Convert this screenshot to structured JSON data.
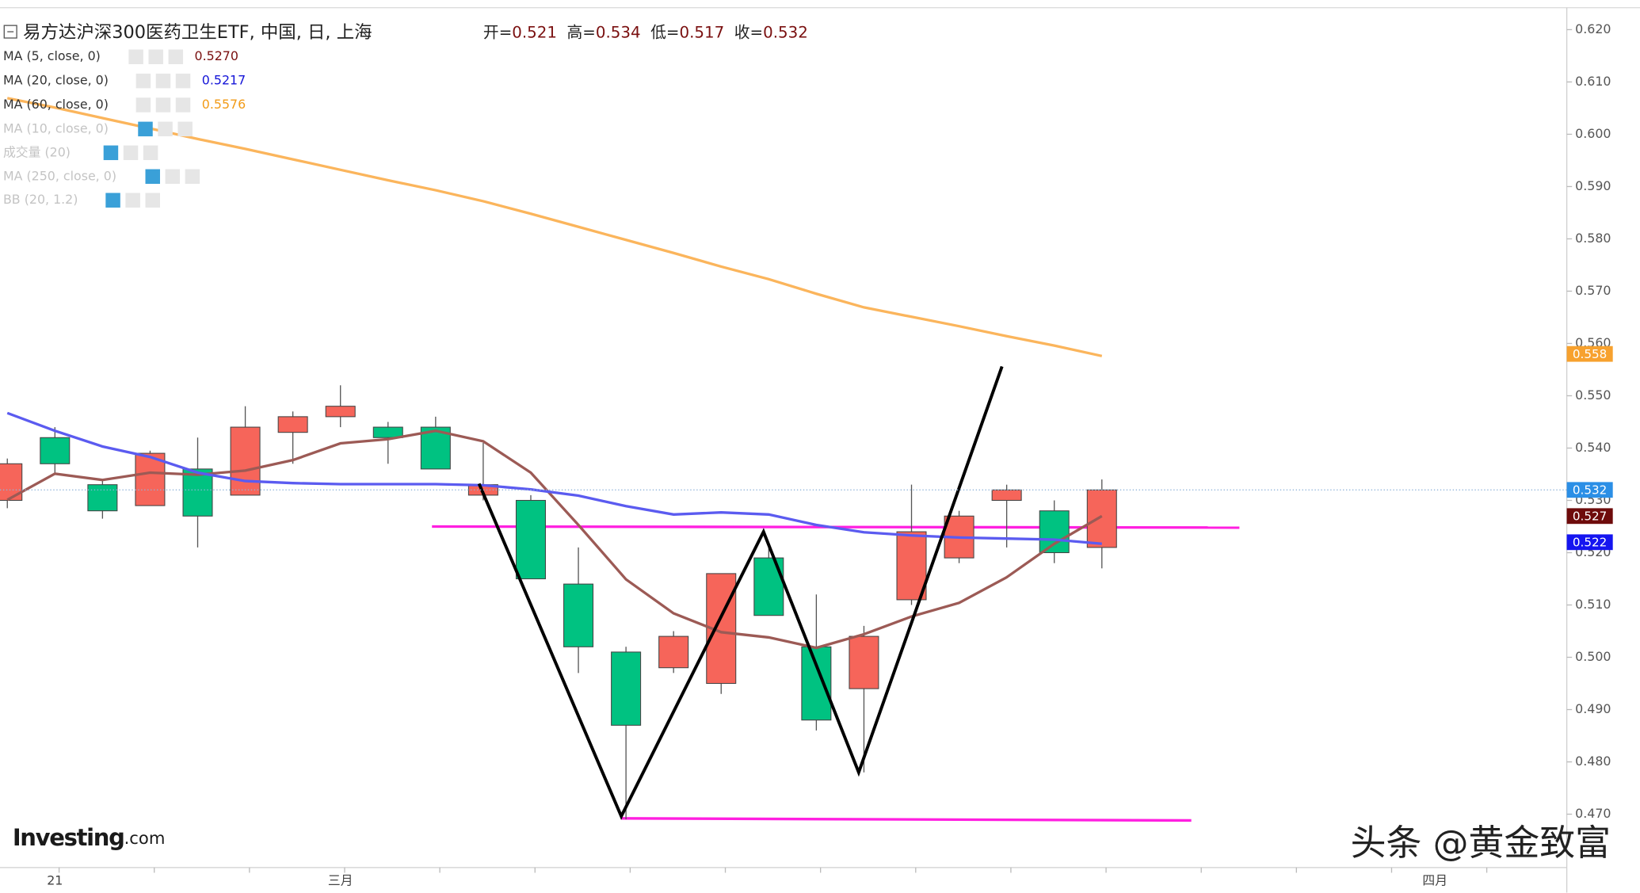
{
  "chart_data": {
    "type": "candlestick",
    "title": "易方达沪深300医药卫生ETF, 中国, 日, 上海",
    "ohlc": [
      {
        "label": "开=",
        "value": 0.521
      },
      {
        "label": "高=",
        "value": 0.534
      },
      {
        "label": "低=",
        "value": 0.517
      },
      {
        "label": "收=",
        "value": 0.532
      }
    ],
    "categories": [
      null,
      "21",
      null,
      null,
      null,
      null,
      null,
      "三月",
      null,
      null,
      null,
      null,
      null,
      null,
      null,
      null,
      null,
      null,
      null,
      null,
      null,
      null,
      null,
      null,
      null,
      null,
      null,
      null,
      null,
      null,
      "四月",
      null,
      null
    ],
    "candles": {
      "up_color": "#f6655a",
      "down_color": "#00c281",
      "open": [
        0.53,
        0.542,
        0.533,
        0.529,
        0.536,
        0.531,
        0.543,
        0.546,
        0.544,
        0.544,
        0.531,
        0.53,
        0.514,
        0.501,
        0.498,
        0.495,
        0.519,
        0.502,
        0.494,
        0.511,
        0.519,
        0.53,
        0.528,
        0.521,
        null,
        null,
        null,
        null,
        null,
        null,
        null,
        null,
        null
      ],
      "high": [
        0.538,
        0.544,
        0.534,
        0.5395,
        0.542,
        0.548,
        0.547,
        0.552,
        0.545,
        0.546,
        0.541,
        0.531,
        0.521,
        0.502,
        0.505,
        0.516,
        0.521,
        0.512,
        0.506,
        0.533,
        0.528,
        0.533,
        0.53,
        0.534,
        null,
        null,
        null,
        null,
        null,
        null,
        null,
        null,
        null
      ],
      "low": [
        0.5285,
        0.535,
        0.5265,
        0.529,
        0.521,
        0.531,
        0.537,
        0.544,
        0.537,
        0.536,
        0.53,
        0.515,
        0.497,
        0.469,
        0.497,
        0.493,
        0.508,
        0.486,
        0.478,
        0.51,
        0.518,
        0.521,
        0.518,
        0.517,
        null,
        null,
        null,
        null,
        null,
        null,
        null,
        null,
        null
      ],
      "close": [
        0.537,
        0.537,
        0.528,
        0.539,
        0.527,
        0.544,
        0.546,
        0.548,
        0.542,
        0.536,
        0.533,
        0.515,
        0.502,
        0.487,
        0.504,
        0.516,
        0.508,
        0.488,
        0.504,
        0.524,
        0.527,
        0.532,
        0.52,
        0.532,
        null,
        null,
        null,
        null,
        null,
        null,
        null,
        null,
        null
      ]
    },
    "series": [
      {
        "name": "MA (5, close, 0)",
        "color": "#9c5a55",
        "value_label": "0.5270",
        "values": [
          0.5301,
          0.5351,
          0.5339,
          0.5353,
          0.5349,
          0.5357,
          0.5377,
          0.5409,
          0.5417,
          0.5433,
          0.5413,
          0.5353,
          0.5253,
          0.5149,
          0.5084,
          0.5048,
          0.5038,
          0.5018,
          0.5044,
          0.5078,
          0.5104,
          0.5153,
          0.5217,
          0.527,
          null,
          null,
          null,
          null,
          null,
          null,
          null,
          null,
          null
        ]
      },
      {
        "name": "MA (20, close, 0)",
        "color": "#5b5bf0",
        "value_label": "0.5217",
        "values": [
          0.5467,
          0.5433,
          0.5403,
          0.5383,
          0.5353,
          0.5337,
          0.5333,
          0.5331,
          0.5331,
          0.5331,
          0.5329,
          0.5321,
          0.5309,
          0.5289,
          0.5273,
          0.5277,
          0.5273,
          0.5253,
          0.5239,
          0.5233,
          0.5229,
          0.5227,
          0.5225,
          0.5217,
          null,
          null,
          null,
          null,
          null,
          null,
          null,
          null,
          null
        ]
      },
      {
        "name": "MA (60, close, 0)",
        "color": "#fbb55c",
        "value_label": "0.5576",
        "values": [
          0.6069,
          0.6051,
          0.6031,
          0.6011,
          0.5991,
          0.5972,
          0.5952,
          0.5932,
          0.5912,
          0.5893,
          0.5872,
          0.5848,
          0.5823,
          0.5798,
          0.5773,
          0.5747,
          0.5723,
          0.5695,
          0.5669,
          0.5651,
          0.5633,
          0.5614,
          0.5596,
          0.5576,
          null,
          null,
          null,
          null,
          null,
          null,
          null,
          null,
          null
        ]
      }
    ],
    "hidden_indicators": [
      "MA (10, close, 0)",
      "成交量 (20)",
      "MA (250, close, 0)",
      "BB (20, 1.2)"
    ],
    "price_tags": [
      {
        "value": 0.558,
        "color": "#f7a12e"
      },
      {
        "value": 0.532,
        "color": "#2b8fe6"
      },
      {
        "value": 0.527,
        "color": "#6e0b0b"
      },
      {
        "value": 0.522,
        "color": "#1515f0"
      }
    ],
    "ylim": [
      0.46,
      0.624
    ],
    "yticks": [
      {
        "value": 0.47,
        "label": "0.470"
      },
      {
        "value": 0.48,
        "label": "0.480"
      },
      {
        "value": 0.49,
        "label": "0.490"
      },
      {
        "value": 0.5,
        "label": "0.500"
      },
      {
        "value": 0.51,
        "label": "0.510"
      },
      {
        "value": 0.52,
        "label": "0.520"
      },
      {
        "value": 0.53,
        "label": "0.530"
      },
      {
        "value": 0.54,
        "label": "0.540"
      },
      {
        "value": 0.55,
        "label": "0.550"
      },
      {
        "value": 0.56,
        "label": "0.560"
      },
      {
        "value": 0.57,
        "label": "0.570"
      },
      {
        "value": 0.58,
        "label": "0.580"
      },
      {
        "value": 0.59,
        "label": "0.590"
      },
      {
        "value": 0.6,
        "label": "0.600"
      },
      {
        "value": 0.61,
        "label": "0.610"
      },
      {
        "value": 0.62,
        "label": "0.620"
      }
    ],
    "logo": "Investing",
    "logo_suffix": ".com",
    "watermark": "头条 @黄金致富"
  }
}
